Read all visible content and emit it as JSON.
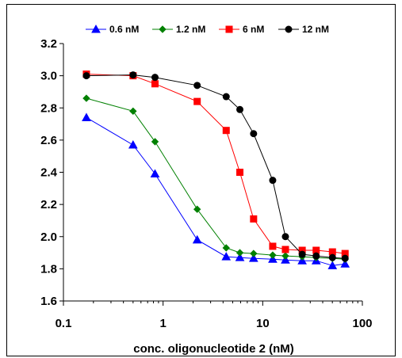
{
  "chart_data": {
    "type": "line",
    "xlabel": "conc. oligonucleotide 2 (nM)",
    "ylabel": "",
    "xscale": "log",
    "xlim": [
      0.1,
      100
    ],
    "ylim": [
      1.6,
      3.2
    ],
    "xticks": [
      0.1,
      1,
      10,
      100
    ],
    "xtick_labels": [
      "0.1",
      "1",
      "10",
      "100"
    ],
    "yticks": [
      1.6,
      1.8,
      2.0,
      2.2,
      2.4,
      2.6,
      2.8,
      3.0,
      3.2
    ],
    "ytick_labels": [
      "1.6",
      "1.8",
      "2.0",
      "2.2",
      "2.4",
      "2.6",
      "2.8",
      "3.0",
      "3.2"
    ],
    "grid": false,
    "legend_position": "top",
    "x": [
      0.17,
      0.5,
      0.83,
      2.2,
      4.3,
      5.9,
      8.1,
      12.6,
      16.9,
      24.9,
      34.4,
      50.1,
      67.1
    ],
    "series": [
      {
        "name": "0.6 nM",
        "color": "#0000ff",
        "marker": "triangle",
        "values": [
          2.74,
          2.57,
          2.39,
          1.98,
          1.875,
          1.87,
          1.865,
          1.86,
          1.855,
          1.85,
          1.85,
          1.82,
          1.83
        ]
      },
      {
        "name": "1.2 nM",
        "color": "#008000",
        "marker": "diamond",
        "values": [
          2.86,
          2.78,
          2.59,
          2.17,
          1.93,
          1.9,
          1.895,
          1.885,
          1.88,
          1.875,
          1.87,
          1.865,
          1.86
        ]
      },
      {
        "name": "6 nM",
        "color": "#ff0000",
        "marker": "square",
        "values": [
          3.01,
          3.0,
          2.95,
          2.84,
          2.66,
          2.4,
          2.11,
          1.94,
          1.92,
          1.915,
          1.915,
          1.905,
          1.895
        ]
      },
      {
        "name": "12 nM",
        "color": "#000000",
        "marker": "circle",
        "values": [
          3.0,
          3.005,
          2.99,
          2.94,
          2.87,
          2.79,
          2.64,
          2.35,
          2.0,
          1.89,
          1.88,
          1.87,
          1.865
        ]
      }
    ]
  }
}
